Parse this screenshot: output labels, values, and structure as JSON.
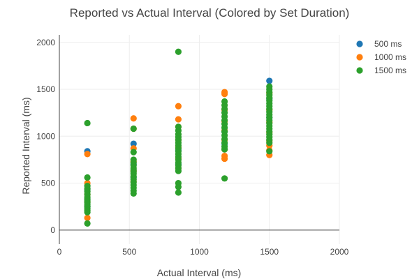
{
  "chart_data": {
    "type": "scatter",
    "title": "Reported vs Actual Interval (Colored by Set Duration)",
    "xlabel": "Actual Interval (ms)",
    "ylabel": "Reported Interval (ms)",
    "xlim": [
      0,
      2000
    ],
    "ylim": [
      -150,
      2080
    ],
    "x_ticks": [
      0,
      500,
      1000,
      1500,
      2000
    ],
    "y_ticks": [
      0,
      500,
      1000,
      1500,
      2000
    ],
    "x_tick_labels": [
      "0",
      "500",
      "1000",
      "1500",
      "2000"
    ],
    "y_tick_labels": [
      "0",
      "500",
      "1000",
      "1500",
      "2000"
    ],
    "grid": true,
    "legend_position": "top-right",
    "series": [
      {
        "name": "500 ms",
        "color": "#1f77b4",
        "points": [
          [
            200,
            840
          ],
          [
            200,
            430
          ],
          [
            200,
            330
          ],
          [
            200,
            250
          ],
          [
            530,
            920
          ],
          [
            530,
            700
          ],
          [
            530,
            560
          ],
          [
            850,
            850
          ],
          [
            850,
            700
          ],
          [
            1180,
            1050
          ],
          [
            1180,
            920
          ],
          [
            1500,
            1590
          ],
          [
            1500,
            1400
          ],
          [
            1500,
            1200
          ]
        ]
      },
      {
        "name": "1000 ms",
        "color": "#ff7f0e",
        "points": [
          [
            200,
            810
          ],
          [
            200,
            500
          ],
          [
            200,
            380
          ],
          [
            200,
            300
          ],
          [
            200,
            130
          ],
          [
            530,
            1190
          ],
          [
            530,
            1080
          ],
          [
            530,
            870
          ],
          [
            530,
            730
          ],
          [
            530,
            630
          ],
          [
            530,
            520
          ],
          [
            850,
            1320
          ],
          [
            850,
            1180
          ],
          [
            850,
            1100
          ],
          [
            850,
            960
          ],
          [
            850,
            880
          ],
          [
            850,
            760
          ],
          [
            850,
            660
          ],
          [
            1180,
            1470
          ],
          [
            1180,
            1450
          ],
          [
            1180,
            1280
          ],
          [
            1180,
            1160
          ],
          [
            1180,
            1060
          ],
          [
            1180,
            960
          ],
          [
            1180,
            860
          ],
          [
            1180,
            790
          ],
          [
            1180,
            760
          ],
          [
            1500,
            1460
          ],
          [
            1500,
            1280
          ],
          [
            1500,
            1150
          ],
          [
            1500,
            1040
          ],
          [
            1500,
            950
          ],
          [
            1500,
            900
          ],
          [
            1500,
            850
          ],
          [
            1500,
            800
          ]
        ]
      },
      {
        "name": "1500 ms",
        "color": "#2ca02c",
        "points": [
          [
            200,
            1140
          ],
          [
            200,
            560
          ],
          [
            200,
            470
          ],
          [
            200,
            440
          ],
          [
            200,
            410
          ],
          [
            200,
            380
          ],
          [
            200,
            350
          ],
          [
            200,
            330
          ],
          [
            200,
            310
          ],
          [
            200,
            290
          ],
          [
            200,
            270
          ],
          [
            200,
            250
          ],
          [
            200,
            230
          ],
          [
            200,
            210
          ],
          [
            200,
            190
          ],
          [
            200,
            70
          ],
          [
            530,
            1080
          ],
          [
            530,
            830
          ],
          [
            530,
            750
          ],
          [
            530,
            720
          ],
          [
            530,
            690
          ],
          [
            530,
            660
          ],
          [
            530,
            640
          ],
          [
            530,
            620
          ],
          [
            530,
            600
          ],
          [
            530,
            570
          ],
          [
            530,
            540
          ],
          [
            530,
            510
          ],
          [
            530,
            480
          ],
          [
            530,
            450
          ],
          [
            530,
            420
          ],
          [
            530,
            390
          ],
          [
            850,
            1900
          ],
          [
            850,
            1100
          ],
          [
            850,
            1060
          ],
          [
            850,
            1020
          ],
          [
            850,
            990
          ],
          [
            850,
            960
          ],
          [
            850,
            930
          ],
          [
            850,
            900
          ],
          [
            850,
            870
          ],
          [
            850,
            840
          ],
          [
            850,
            810
          ],
          [
            850,
            780
          ],
          [
            850,
            750
          ],
          [
            850,
            720
          ],
          [
            850,
            690
          ],
          [
            850,
            660
          ],
          [
            850,
            630
          ],
          [
            850,
            500
          ],
          [
            850,
            460
          ],
          [
            850,
            400
          ],
          [
            1180,
            1370
          ],
          [
            1180,
            1330
          ],
          [
            1180,
            1290
          ],
          [
            1180,
            1250
          ],
          [
            1180,
            1210
          ],
          [
            1180,
            1170
          ],
          [
            1180,
            1130
          ],
          [
            1180,
            1090
          ],
          [
            1180,
            1050
          ],
          [
            1180,
            1010
          ],
          [
            1180,
            970
          ],
          [
            1180,
            930
          ],
          [
            1180,
            890
          ],
          [
            1180,
            860
          ],
          [
            1180,
            550
          ],
          [
            1500,
            1530
          ],
          [
            1500,
            1500
          ],
          [
            1500,
            1470
          ],
          [
            1500,
            1440
          ],
          [
            1500,
            1410
          ],
          [
            1500,
            1380
          ],
          [
            1500,
            1350
          ],
          [
            1500,
            1320
          ],
          [
            1500,
            1290
          ],
          [
            1500,
            1260
          ],
          [
            1500,
            1230
          ],
          [
            1500,
            1200
          ],
          [
            1500,
            1170
          ],
          [
            1500,
            1140
          ],
          [
            1500,
            1110
          ],
          [
            1500,
            1080
          ],
          [
            1500,
            1050
          ],
          [
            1500,
            1020
          ],
          [
            1500,
            990
          ],
          [
            1500,
            960
          ],
          [
            1500,
            930
          ],
          [
            1500,
            840
          ]
        ]
      }
    ]
  }
}
